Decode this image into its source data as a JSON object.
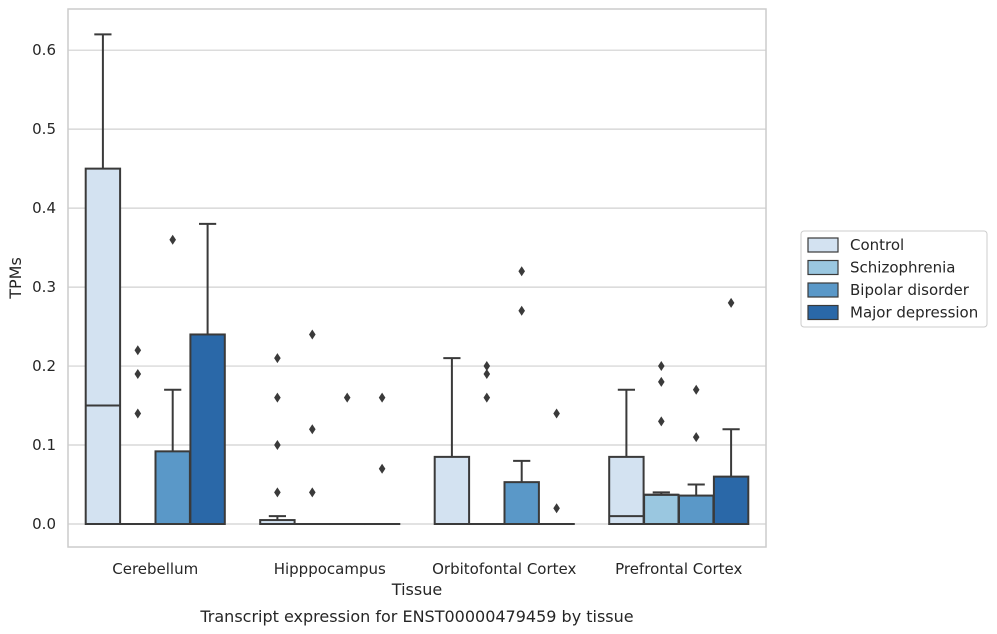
{
  "chart_data": {
    "type": "box",
    "title": "Transcript expression for ENST00000479459 by tissue",
    "xlabel": "Tissue",
    "ylabel": "TPMs",
    "ylim": [
      -0.03,
      0.655
    ],
    "yticks": [
      0.0,
      0.1,
      0.2,
      0.3,
      0.4,
      0.5,
      0.6
    ],
    "ytick_labels": [
      "0.0",
      "0.1",
      "0.2",
      "0.3",
      "0.4",
      "0.5",
      "0.6"
    ],
    "grid": true,
    "legend_position": "right",
    "categories": [
      "Cerebellum",
      "Hipppocampus",
      "Orbitofontal Cortex",
      "Prefrontal Cortex"
    ],
    "series": [
      {
        "name": "Control",
        "color": "#d3e2f1",
        "boxes": [
          {
            "q1": 0.0,
            "median": 0.15,
            "q3": 0.45,
            "whisker_low": 0.0,
            "whisker_high": 0.62,
            "outliers": []
          },
          {
            "q1": 0.0,
            "median": 0.0,
            "q3": 0.005,
            "whisker_low": 0.0,
            "whisker_high": 0.01,
            "outliers": [
              0.04,
              0.1,
              0.16,
              0.21
            ]
          },
          {
            "q1": 0.0,
            "median": 0.0,
            "q3": 0.085,
            "whisker_low": 0.0,
            "whisker_high": 0.21,
            "outliers": []
          },
          {
            "q1": 0.0,
            "median": 0.01,
            "q3": 0.085,
            "whisker_low": 0.0,
            "whisker_high": 0.17,
            "outliers": []
          }
        ]
      },
      {
        "name": "Schizophrenia",
        "color": "#9ac7e0",
        "boxes": [
          {
            "q1": 0.0,
            "median": 0.0,
            "q3": 0.0,
            "whisker_low": 0.0,
            "whisker_high": 0.0,
            "outliers": [
              0.14,
              0.19,
              0.22
            ]
          },
          {
            "q1": 0.0,
            "median": 0.0,
            "q3": 0.0,
            "whisker_low": 0.0,
            "whisker_high": 0.0,
            "outliers": [
              0.04,
              0.12,
              0.24
            ]
          },
          {
            "q1": 0.0,
            "median": 0.0,
            "q3": 0.0,
            "whisker_low": 0.0,
            "whisker_high": 0.0,
            "outliers": [
              0.16,
              0.19,
              0.2
            ]
          },
          {
            "q1": 0.0,
            "median": 0.037,
            "q3": 0.037,
            "whisker_low": 0.0,
            "whisker_high": 0.04,
            "outliers": [
              0.13,
              0.18,
              0.2
            ]
          }
        ]
      },
      {
        "name": "Bipolar disorder",
        "color": "#5a98c8",
        "boxes": [
          {
            "q1": 0.0,
            "median": 0.0,
            "q3": 0.092,
            "whisker_low": 0.0,
            "whisker_high": 0.17,
            "outliers": [
              0.36
            ]
          },
          {
            "q1": 0.0,
            "median": 0.0,
            "q3": 0.0,
            "whisker_low": 0.0,
            "whisker_high": 0.0,
            "outliers": [
              0.16
            ]
          },
          {
            "q1": 0.0,
            "median": 0.0,
            "q3": 0.053,
            "whisker_low": 0.0,
            "whisker_high": 0.08,
            "outliers": [
              0.27,
              0.32
            ]
          },
          {
            "q1": 0.0,
            "median": 0.0,
            "q3": 0.036,
            "whisker_low": 0.0,
            "whisker_high": 0.05,
            "outliers": [
              0.11,
              0.17
            ]
          }
        ]
      },
      {
        "name": "Major depression",
        "color": "#2a68a8",
        "boxes": [
          {
            "q1": 0.0,
            "median": 0.0,
            "q3": 0.24,
            "whisker_low": 0.0,
            "whisker_high": 0.38,
            "outliers": []
          },
          {
            "q1": 0.0,
            "median": 0.0,
            "q3": 0.0,
            "whisker_low": 0.0,
            "whisker_high": 0.0,
            "outliers": [
              0.07,
              0.16
            ]
          },
          {
            "q1": 0.0,
            "median": 0.0,
            "q3": 0.0,
            "whisker_low": 0.0,
            "whisker_high": 0.0,
            "outliers": [
              0.02,
              0.14
            ]
          },
          {
            "q1": 0.0,
            "median": 0.0,
            "q3": 0.06,
            "whisker_low": 0.0,
            "whisker_high": 0.12,
            "outliers": [
              0.28
            ]
          }
        ]
      }
    ]
  }
}
